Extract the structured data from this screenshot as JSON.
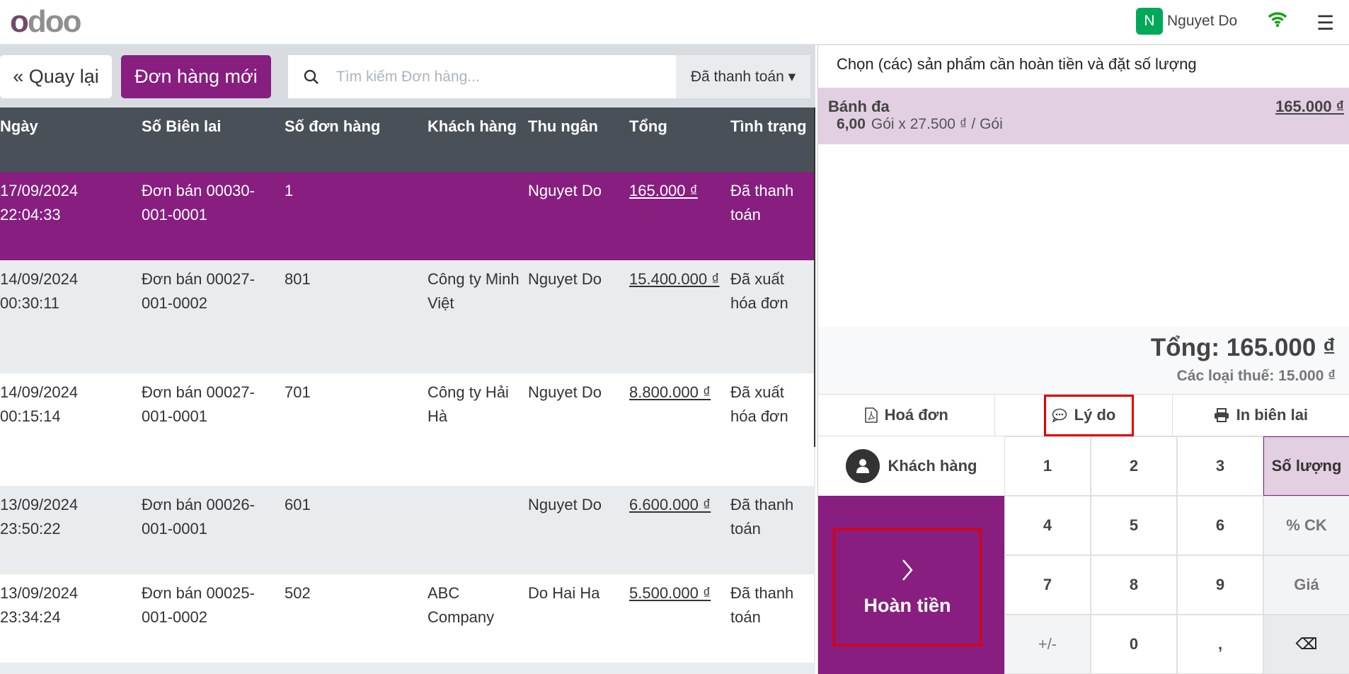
{
  "header": {
    "logo": "odoo",
    "user_initial": "N",
    "user_name": "Nguyet Do",
    "icons": [
      "wifi-icon",
      "hamburger-menu-icon"
    ],
    "wifi_color": "#16a316"
  },
  "toolbar": {
    "back_label": "« Quay lại",
    "new_order_label": "Đơn hàng mới",
    "search_placeholder": "Tìm kiếm Đơn hàng...",
    "filter_label": "Đã thanh toán ▾"
  },
  "table": {
    "columns": [
      "Ngày",
      "Số Biên lai",
      "Số đơn hàng",
      "Khách hàng",
      "Thu ngân",
      "Tổng",
      "Tình trạng"
    ],
    "rows": [
      {
        "date": "17/09/2024 22:04:33",
        "receipt": "Đơn bán 00030-001-0001",
        "order_no": "1",
        "customer": "",
        "cashier": "Nguyet Do",
        "total": "165.000 ₫",
        "status": "Đã thanh toán",
        "selected": true
      },
      {
        "date": "14/09/2024 00:30:11",
        "receipt": "Đơn bán 00027-001-0002",
        "order_no": "801",
        "customer": "Công ty Minh Việt",
        "cashier": "Nguyet Do",
        "total": "15.400.000 ₫",
        "status": "Đã xuất hóa đơn"
      },
      {
        "date": "14/09/2024 00:15:14",
        "receipt": "Đơn bán 00027-001-0001",
        "order_no": "701",
        "customer": "Công ty Hải Hà",
        "cashier": "Nguyet Do",
        "total": "8.800.000 ₫",
        "status": "Đã xuất hóa đơn"
      },
      {
        "date": "13/09/2024 23:50:22",
        "receipt": "Đơn bán 00026-001-0001",
        "order_no": "601",
        "customer": "",
        "cashier": "Nguyet Do",
        "total": "6.600.000 ₫",
        "status": "Đã thanh toán"
      },
      {
        "date": "13/09/2024 23:34:24",
        "receipt": "Đơn bán 00025-001-0002",
        "order_no": "502",
        "customer": "ABC Company",
        "cashier": "Do Hai Ha",
        "total": "5.500.000 ₫",
        "status": "Đã thanh toán"
      }
    ]
  },
  "refund": {
    "instruction": "Chọn (các) sản phẩm cần hoàn tiền và đặt số lượng",
    "line": {
      "product": "Bánh đa",
      "price": "165.000 ₫",
      "qty": "6,00",
      "unit_info": "Gói x 27.500 ₫ / Gói"
    },
    "total": "Tổng: 165.000 ₫",
    "taxes": "Các loại thuế: 15.000 ₫",
    "actions": [
      "Hoá đơn",
      "Lý do",
      "In biên lai"
    ],
    "customer_label": "Khách hàng",
    "pay_label": "Hoàn tiền",
    "keys": [
      "1",
      "2",
      "3",
      "Số lượng",
      "4",
      "5",
      "6",
      "% CK",
      "7",
      "8",
      "9",
      "Giá",
      "+/-",
      "0",
      ",",
      "⌫"
    ]
  },
  "colors": {
    "accent": "#871e80",
    "table_header": "#4a5058",
    "highlight_box": "#e00000"
  }
}
